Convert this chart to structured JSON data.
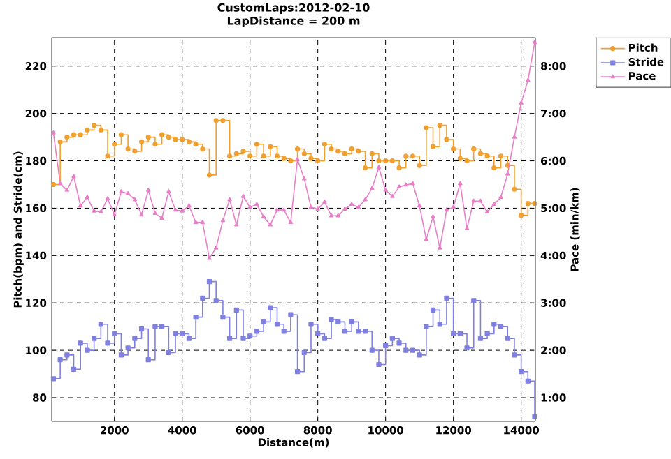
{
  "chart_data": {
    "type": "line",
    "title": "CustomLaps:2012-02-10",
    "subtitle": "LapDistance = 200 m",
    "xlabel": "Distance(m)",
    "ylabel": "Pitch(bpm) and Stride(cm)",
    "y2label": "Pace (min/km)",
    "x": [
      200,
      400,
      600,
      800,
      1000,
      1200,
      1400,
      1600,
      1800,
      2000,
      2200,
      2400,
      2600,
      2800,
      3000,
      3200,
      3400,
      3600,
      3800,
      4000,
      4200,
      4400,
      4600,
      4800,
      5000,
      5200,
      5400,
      5600,
      5800,
      6000,
      6200,
      6400,
      6600,
      6800,
      7000,
      7200,
      7400,
      7600,
      7800,
      8000,
      8200,
      8400,
      8600,
      8800,
      9000,
      9200,
      9400,
      9600,
      9800,
      10000,
      10200,
      10400,
      10600,
      10800,
      11000,
      11200,
      11400,
      11600,
      11800,
      12000,
      12200,
      12400,
      12600,
      12800,
      13000,
      13200,
      13400,
      13600,
      13800,
      14000,
      14200,
      14400
    ],
    "series": [
      {
        "name": "Pitch",
        "type": "step",
        "marker": "circle",
        "color": "#f0a030",
        "values": [
          170,
          188,
          190,
          191,
          191,
          193,
          195,
          193,
          182,
          187,
          191,
          185,
          184,
          188,
          190,
          187,
          191,
          190,
          189,
          189,
          188,
          187,
          185,
          174,
          197,
          197,
          182,
          183,
          184,
          182,
          187,
          182,
          186,
          182,
          181,
          180,
          185,
          183,
          181,
          180,
          187,
          185,
          184,
          183,
          185,
          184,
          177,
          183,
          180,
          180,
          180,
          177,
          182,
          182,
          178,
          194,
          186,
          195,
          189,
          185,
          181,
          180,
          185,
          183,
          182,
          177,
          182,
          178,
          168,
          157,
          162,
          162
        ]
      },
      {
        "name": "Stride",
        "type": "step",
        "marker": "square",
        "color": "#8080e0",
        "values": [
          88,
          96,
          98,
          92,
          103,
          100,
          105,
          111,
          103,
          107,
          98,
          101,
          105,
          109,
          96,
          110,
          110,
          99,
          107,
          107,
          105,
          114,
          122,
          129,
          121,
          114,
          105,
          117,
          105,
          106,
          108,
          112,
          118,
          111,
          108,
          115,
          91,
          99,
          111,
          107,
          105,
          113,
          112,
          108,
          112,
          108,
          108,
          100,
          94,
          102,
          105,
          103,
          100,
          100,
          98,
          110,
          117,
          111,
          122,
          107,
          107,
          101,
          121,
          105,
          107,
          111,
          110,
          105,
          98,
          91,
          87,
          72
        ]
      },
      {
        "name": "Pace",
        "marker": "triangle",
        "axis": "y2",
        "color": "#e880c8",
        "values": [
          6.59,
          5.52,
          5.38,
          5.67,
          5.05,
          5.23,
          4.94,
          4.92,
          5.2,
          4.86,
          5.35,
          5.31,
          5.18,
          4.86,
          5.38,
          4.89,
          4.79,
          5.35,
          4.96,
          4.94,
          5.05,
          4.7,
          4.7,
          3.94,
          4.16,
          4.74,
          5.18,
          4.65,
          5.25,
          5.02,
          5.08,
          4.82,
          4.65,
          4.96,
          4.96,
          4.7,
          6.03,
          5.62,
          5.02,
          4.98,
          5.13,
          4.84,
          4.84,
          4.98,
          5.08,
          5.02,
          5.18,
          5.42,
          5.86,
          5.38,
          5.25,
          5.45,
          5.49,
          5.52,
          5.05,
          4.34,
          4.82,
          4.16,
          4.96,
          5.02,
          5.52,
          4.57,
          5.15,
          5.15,
          4.92,
          5.08,
          5.23,
          5.72,
          6.5,
          7.22,
          7.7,
          8.5
        ]
      }
    ],
    "xlim": [
      150,
      14420
    ],
    "xticks": [
      2000,
      4000,
      6000,
      8000,
      10000,
      12000,
      14000
    ],
    "ylim": [
      70,
      232
    ],
    "yticks": [
      80,
      100,
      120,
      140,
      160,
      180,
      200,
      220
    ],
    "y2lim": [
      0.5,
      8.6
    ],
    "y2ticks": [
      {
        "value": 1,
        "label": "1:00"
      },
      {
        "value": 2,
        "label": "2:00"
      },
      {
        "value": 3,
        "label": "3:00"
      },
      {
        "value": 4,
        "label": "4:00"
      },
      {
        "value": 5,
        "label": "5:00"
      },
      {
        "value": 6,
        "label": "6:00"
      },
      {
        "value": 7,
        "label": "7:00"
      },
      {
        "value": 8,
        "label": "8:00"
      }
    ],
    "grid": true,
    "legend": "top right"
  }
}
